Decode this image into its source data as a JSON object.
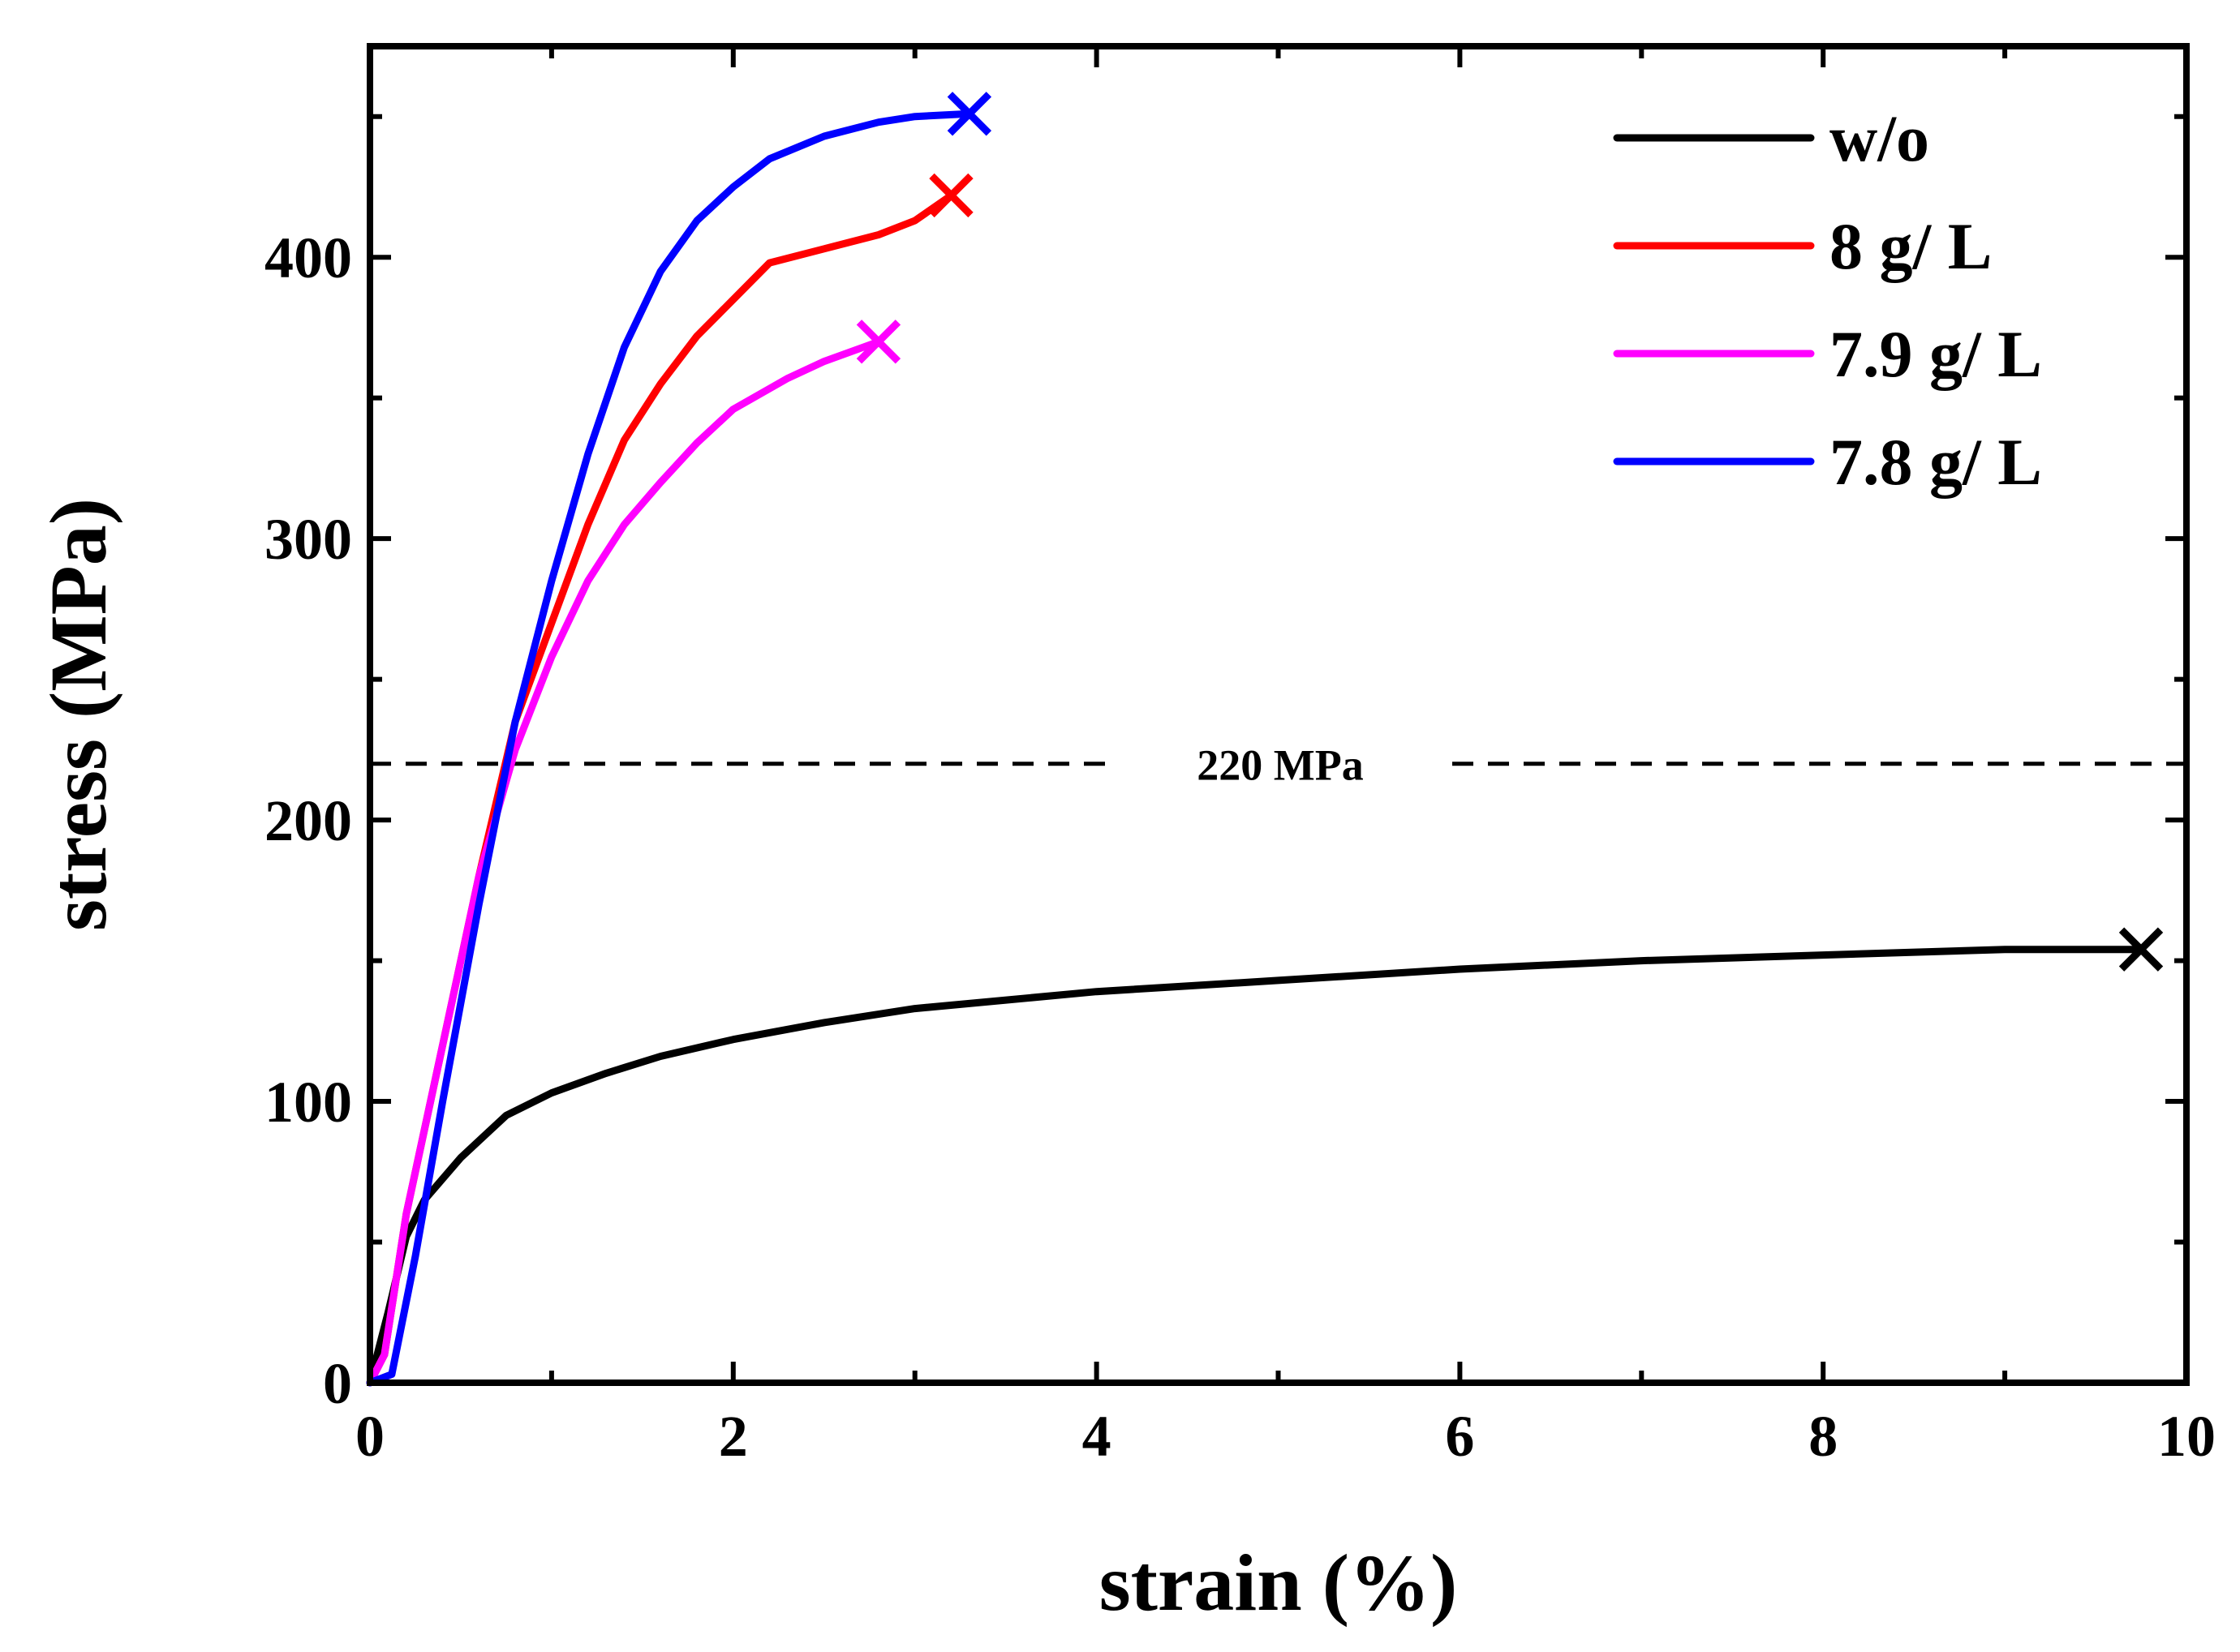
{
  "chart_data": {
    "type": "line",
    "title": "",
    "xlabel": "strain (%)",
    "ylabel": "stress (MPa)",
    "xlim": [
      0,
      10
    ],
    "ylim": [
      0,
      475
    ],
    "xticks": [
      0,
      2,
      4,
      6,
      8,
      10
    ],
    "yticks": [
      0,
      100,
      200,
      300,
      400
    ],
    "grid": false,
    "legend_position": "top-right",
    "reference_line": {
      "y": 220,
      "label": "220 MPa",
      "style": "dashed",
      "color": "#000000"
    },
    "series": [
      {
        "name": "w/o",
        "color": "#000000",
        "points": [
          [
            0,
            0
          ],
          [
            0.1,
            25
          ],
          [
            0.2,
            52
          ],
          [
            0.3,
            65
          ],
          [
            0.5,
            80
          ],
          [
            0.75,
            95
          ],
          [
            1.0,
            103
          ],
          [
            1.3,
            110
          ],
          [
            1.6,
            116
          ],
          [
            2.0,
            122
          ],
          [
            2.5,
            128
          ],
          [
            3.0,
            133
          ],
          [
            4.0,
            139
          ],
          [
            5.0,
            143
          ],
          [
            6.0,
            147
          ],
          [
            7.0,
            150
          ],
          [
            8.0,
            152
          ],
          [
            9.0,
            154
          ],
          [
            9.75,
            154
          ]
        ],
        "break_point": [
          9.75,
          154
        ]
      },
      {
        "name": "8 g/ L",
        "color": "#ff0000",
        "points": [
          [
            0,
            0
          ],
          [
            0.08,
            10
          ],
          [
            0.2,
            60
          ],
          [
            0.4,
            120
          ],
          [
            0.6,
            180
          ],
          [
            0.8,
            235
          ],
          [
            1.0,
            270
          ],
          [
            1.2,
            305
          ],
          [
            1.4,
            335
          ],
          [
            1.6,
            355
          ],
          [
            1.8,
            372
          ],
          [
            2.0,
            385
          ],
          [
            2.2,
            398
          ],
          [
            2.5,
            403
          ],
          [
            2.8,
            408
          ],
          [
            3.0,
            413
          ],
          [
            3.2,
            422
          ]
        ],
        "break_point": [
          3.2,
          422
        ]
      },
      {
        "name": "7.9 g/ L",
        "color": "#ff00ff",
        "points": [
          [
            0,
            0
          ],
          [
            0.08,
            10
          ],
          [
            0.2,
            60
          ],
          [
            0.4,
            120
          ],
          [
            0.6,
            180
          ],
          [
            0.8,
            225
          ],
          [
            1.0,
            258
          ],
          [
            1.2,
            285
          ],
          [
            1.4,
            305
          ],
          [
            1.6,
            320
          ],
          [
            1.8,
            334
          ],
          [
            2.0,
            346
          ],
          [
            2.3,
            357
          ],
          [
            2.5,
            363
          ],
          [
            2.8,
            370
          ]
        ],
        "break_point": [
          2.8,
          370
        ]
      },
      {
        "name": "7.8 g/ L",
        "color": "#0000ff",
        "points": [
          [
            0,
            0
          ],
          [
            0.12,
            3
          ],
          [
            0.25,
            45
          ],
          [
            0.4,
            100
          ],
          [
            0.6,
            170
          ],
          [
            0.8,
            235
          ],
          [
            1.0,
            285
          ],
          [
            1.2,
            330
          ],
          [
            1.4,
            368
          ],
          [
            1.6,
            395
          ],
          [
            1.8,
            413
          ],
          [
            2.0,
            425
          ],
          [
            2.2,
            435
          ],
          [
            2.5,
            443
          ],
          [
            2.8,
            448
          ],
          [
            3.0,
            450
          ],
          [
            3.3,
            451
          ]
        ],
        "break_point": [
          3.3,
          451
        ]
      }
    ]
  }
}
